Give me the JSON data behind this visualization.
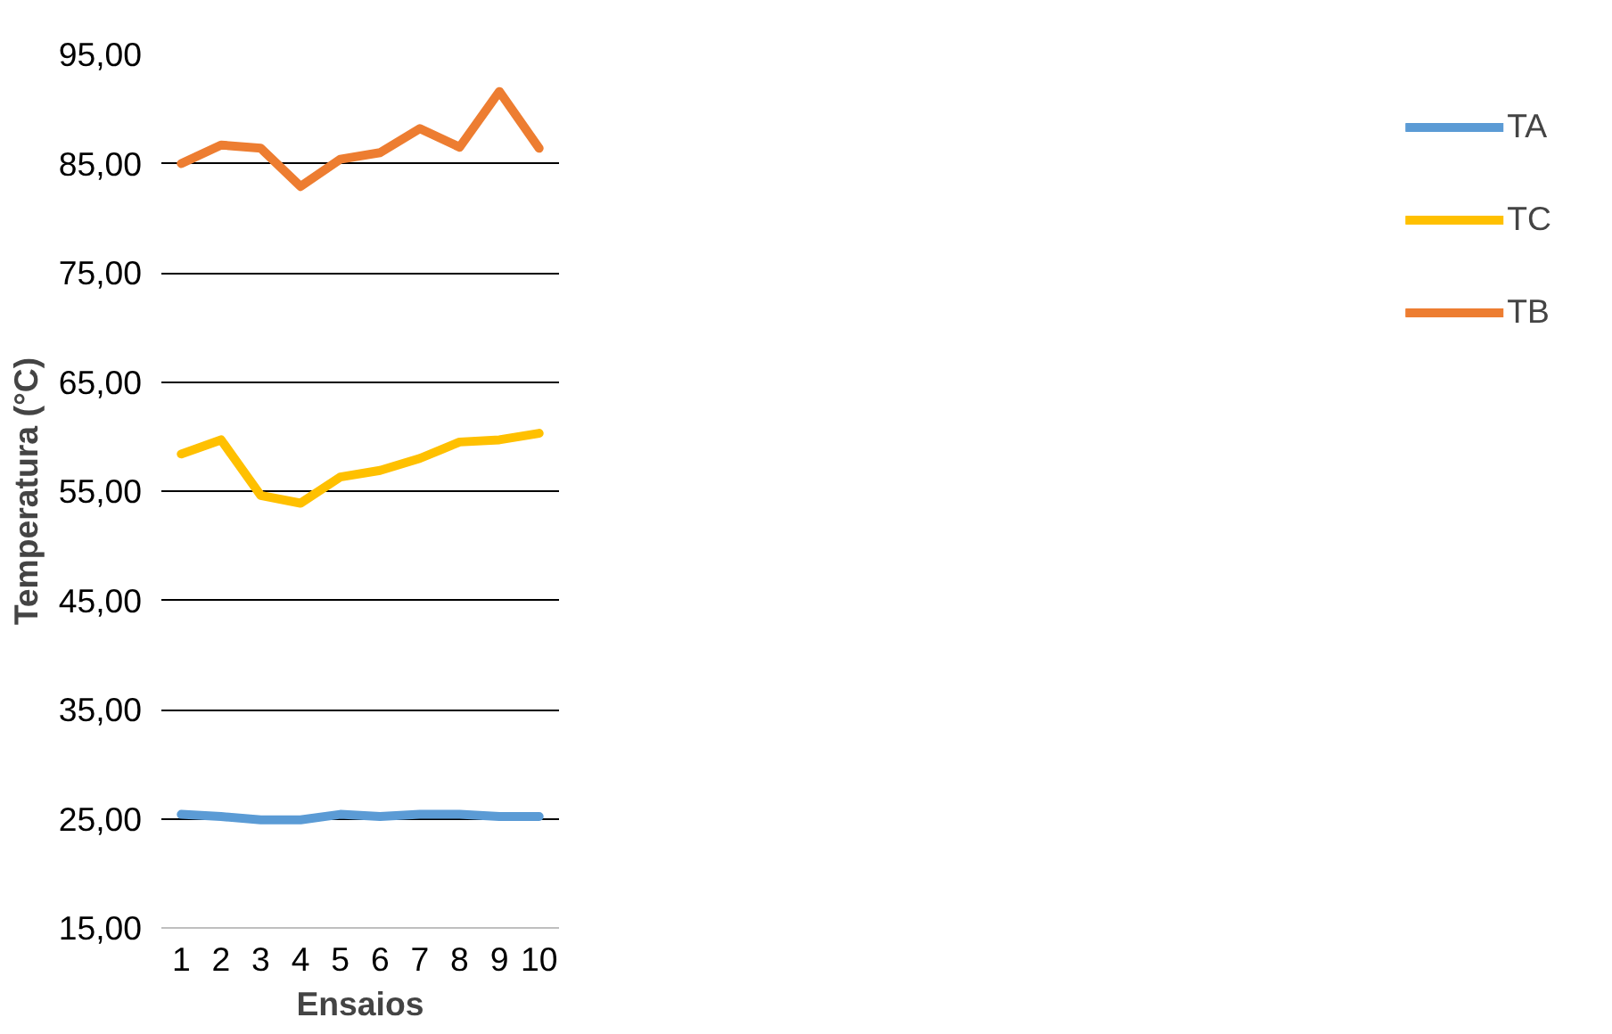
{
  "chart_data": {
    "type": "line",
    "xlabel": "Ensaios",
    "ylabel": "Temperatura (°C)",
    "categories": [
      "1",
      "2",
      "3",
      "4",
      "5",
      "6",
      "7",
      "8",
      "9",
      "10"
    ],
    "series": [
      {
        "name": "TA",
        "color": "#5b9bd5",
        "values": [
          25.4,
          25.2,
          24.9,
          24.9,
          25.4,
          25.2,
          25.4,
          25.4,
          25.2,
          25.2
        ]
      },
      {
        "name": "TC",
        "color": "#ffc000",
        "values": [
          58.4,
          59.7,
          54.6,
          53.9,
          56.3,
          56.9,
          58.0,
          59.5,
          59.7,
          60.3
        ]
      },
      {
        "name": "TB",
        "color": "#ed7d31",
        "values": [
          85.0,
          86.7,
          86.4,
          82.9,
          85.4,
          86.0,
          88.2,
          86.5,
          91.6,
          86.4
        ]
      }
    ],
    "ylim": [
      15,
      95
    ],
    "yticks": [
      {
        "value": 15,
        "label": "15,00"
      },
      {
        "value": 25,
        "label": "25,00"
      },
      {
        "value": 35,
        "label": "35,00"
      },
      {
        "value": 45,
        "label": "45,00"
      },
      {
        "value": 55,
        "label": "55,00"
      },
      {
        "value": 65,
        "label": "65,00"
      },
      {
        "value": 75,
        "label": "75,00"
      },
      {
        "value": 85,
        "label": "85,00"
      },
      {
        "value": 95,
        "label": "95,00"
      }
    ],
    "grid": "y",
    "legend": "right",
    "marker": "none",
    "line_style": "solid"
  }
}
